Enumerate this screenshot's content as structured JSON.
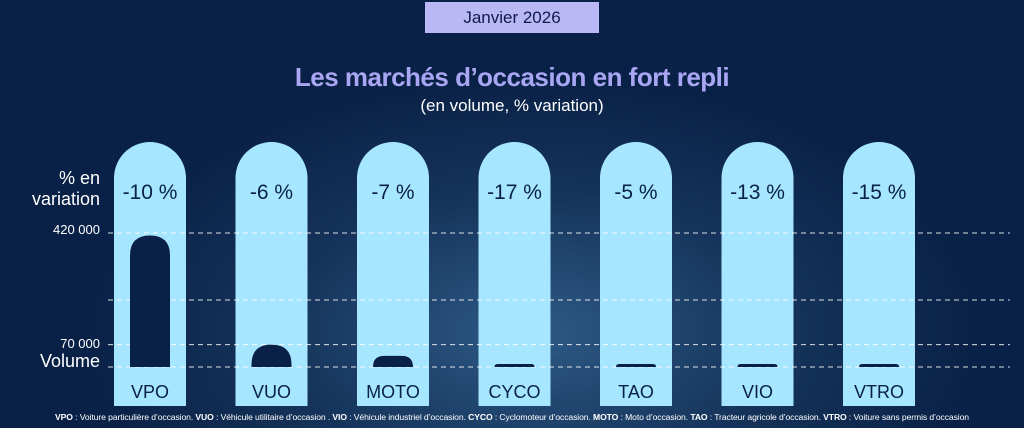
{
  "header": {
    "date_tag": "Janvier 2026"
  },
  "title": "Les marchés d’occasion en fort repli",
  "subtitle": "(en volume, % variation)",
  "axis": {
    "pct_label_line1": "% en",
    "pct_label_line2": "variation",
    "tick_top": "420 000",
    "tick_low": "70 000",
    "volume_label": "Volume"
  },
  "colors": {
    "pill": "#a6e6ff",
    "bar": "#0a2147",
    "background": "#0a2147",
    "accent": "#a9a6f3",
    "tag_bg": "#b9b8f5"
  },
  "chart_data": {
    "type": "bar",
    "categories": [
      "VPO",
      "VUO",
      "MOTO",
      "CYCO",
      "TAO",
      "VIO",
      "VTRO"
    ],
    "pct_labels": [
      "-10 %",
      "-6 %",
      "-7 %",
      "-17 %",
      "-5 %",
      "-13 %",
      "-15 %"
    ],
    "pct_variation": [
      -10,
      -6,
      -7,
      -17,
      -5,
      -13,
      -15
    ],
    "values": [
      412000,
      70000,
      35000,
      6000,
      6000,
      4000,
      5000
    ],
    "ylim": [
      0,
      420000
    ],
    "yticks": [
      70000,
      420000
    ],
    "grid": true,
    "dashed_gridlines_at": [
      70000,
      210000,
      420000
    ]
  },
  "footnote": [
    {
      "abbr": "VPO",
      "text": " : Voiture particulière d’occasion. "
    },
    {
      "abbr": "VUO",
      "text": " : Véhicule utilitaire d’occasion . "
    },
    {
      "abbr": "VIO",
      "text": " : Véhicule industriel d’occasion. "
    },
    {
      "abbr": "CYCO",
      "text": " : Cyclomoteur d’occasion. "
    },
    {
      "abbr": "MOTO",
      "text": " : Moto d’occasion. "
    },
    {
      "abbr": "TAO",
      "text": " : Tracteur agricole d’occasion. "
    },
    {
      "abbr": "VTRO",
      "text": " : Voiture sans permis d’occasion"
    }
  ]
}
